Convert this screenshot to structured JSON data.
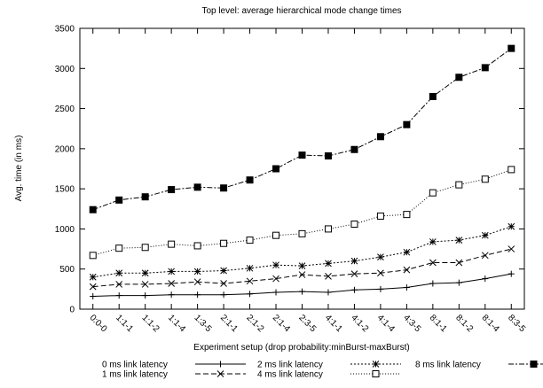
{
  "chart_data": {
    "type": "line",
    "title": "Top level: average hierarchical mode change times",
    "x_label": "Experiment setup (drop probability:minBurst-maxBurst)",
    "y_label": "Avg. time (in ms)",
    "categories": [
      "0:0-0",
      "1:1-1",
      "1:1-2",
      "1:1-4",
      "1:3-5",
      "2:1-1",
      "2:1-2",
      "2:1-4",
      "2:3-5",
      "4:1-1",
      "4:1-2",
      "4:1-4",
      "4:3-5",
      "8:1-1",
      "8:1-2",
      "8:1-4",
      "8:3-5"
    ],
    "ylim": [
      0,
      3500
    ],
    "yticks": [
      0,
      500,
      1000,
      1500,
      2000,
      2500,
      3000,
      3500
    ],
    "grid": false,
    "series": [
      {
        "name": "0 ms link latency",
        "color": "#000000",
        "marker": "plus",
        "dash": "none",
        "values": [
          160,
          170,
          170,
          180,
          180,
          180,
          190,
          210,
          220,
          210,
          240,
          250,
          270,
          320,
          330,
          380,
          440
        ]
      },
      {
        "name": "1 ms link latency",
        "color": "#000000",
        "marker": "cross",
        "dash": "6,3",
        "values": [
          280,
          310,
          310,
          320,
          340,
          320,
          350,
          380,
          430,
          410,
          440,
          450,
          490,
          580,
          580,
          670,
          750
        ]
      },
      {
        "name": "2 ms link latency",
        "color": "#000000",
        "marker": "star",
        "dash": "2,2",
        "values": [
          400,
          450,
          450,
          470,
          470,
          480,
          510,
          550,
          540,
          570,
          600,
          650,
          710,
          840,
          860,
          920,
          1030
        ]
      },
      {
        "name": "4 ms link latency",
        "color": "#000000",
        "marker": "square",
        "dash": "1,2",
        "values": [
          670,
          760,
          770,
          810,
          790,
          820,
          860,
          920,
          940,
          1000,
          1060,
          1160,
          1180,
          1450,
          1550,
          1620,
          1740
        ]
      },
      {
        "name": "8 ms link latency",
        "color": "#000000",
        "marker": "filled-square",
        "dash": "6,2,2,2",
        "values": [
          1240,
          1360,
          1400,
          1490,
          1520,
          1510,
          1610,
          1750,
          1920,
          1910,
          1990,
          2150,
          2300,
          2650,
          2890,
          3010,
          3250
        ]
      }
    ]
  }
}
